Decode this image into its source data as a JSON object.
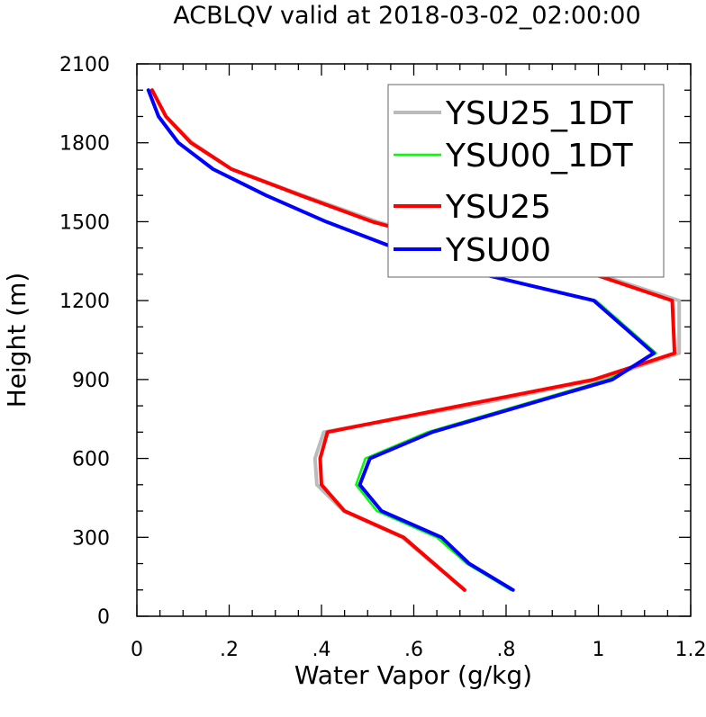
{
  "chart_data": {
    "type": "line",
    "title": "ACBLQV valid at 2018-03-02_02:00:00",
    "xlabel": "Water Vapor (g/kg)",
    "ylabel": "Height (m)",
    "xlim": [
      0,
      1.2
    ],
    "ylim": [
      0,
      2100
    ],
    "xticks": [
      0,
      0.2,
      0.4,
      0.6,
      0.8,
      1.0,
      1.2
    ],
    "xtick_labels": [
      "0",
      ".2",
      ".4",
      ".6",
      ".8",
      "1",
      "1.2"
    ],
    "yticks": [
      0,
      300,
      600,
      900,
      1200,
      1500,
      1800,
      2100
    ],
    "ytick_labels": [
      "0",
      "300",
      "600",
      "900",
      "1200",
      "1500",
      "1800",
      "2100"
    ],
    "grid": false,
    "legend_position": "top-right",
    "series": [
      {
        "name": "YSU25_1DT",
        "color": "#bbbbbb",
        "points": [
          [
            0.71,
            100
          ],
          [
            0.575,
            300
          ],
          [
            0.448,
            400
          ],
          [
            0.39,
            500
          ],
          [
            0.386,
            600
          ],
          [
            0.405,
            700
          ],
          [
            0.72,
            800
          ],
          [
            1.0,
            900
          ],
          [
            1.175,
            1000
          ],
          [
            1.175,
            1200
          ],
          [
            1.0,
            1300
          ],
          [
            0.72,
            1400
          ],
          [
            0.52,
            1500
          ],
          [
            0.36,
            1600
          ],
          [
            0.205,
            1700
          ],
          [
            0.12,
            1800
          ],
          [
            0.063,
            1900
          ],
          [
            0.033,
            2000
          ]
        ]
      },
      {
        "name": "YSU00_1DT",
        "color": "#00ff00",
        "points": [
          [
            0.81,
            100
          ],
          [
            0.715,
            200
          ],
          [
            0.65,
            300
          ],
          [
            0.52,
            400
          ],
          [
            0.475,
            500
          ],
          [
            0.495,
            600
          ],
          [
            0.63,
            700
          ],
          [
            1.02,
            900
          ],
          [
            1.125,
            1000
          ],
          [
            0.995,
            1200
          ],
          [
            0.75,
            1300
          ],
          [
            0.56,
            1400
          ],
          [
            0.41,
            1500
          ],
          [
            0.28,
            1600
          ],
          [
            0.165,
            1700
          ],
          [
            0.09,
            1800
          ],
          [
            0.047,
            1900
          ],
          [
            0.025,
            2000
          ]
        ]
      },
      {
        "name": "YSU25",
        "color": "#ff0000",
        "points": [
          [
            0.71,
            100
          ],
          [
            0.578,
            300
          ],
          [
            0.45,
            400
          ],
          [
            0.4,
            500
          ],
          [
            0.397,
            600
          ],
          [
            0.413,
            700
          ],
          [
            0.7,
            800
          ],
          [
            0.99,
            900
          ],
          [
            1.165,
            1000
          ],
          [
            1.16,
            1200
          ],
          [
            0.99,
            1300
          ],
          [
            0.72,
            1400
          ],
          [
            0.51,
            1500
          ],
          [
            0.355,
            1600
          ],
          [
            0.205,
            1700
          ],
          [
            0.117,
            1800
          ],
          [
            0.063,
            1900
          ],
          [
            0.033,
            2000
          ]
        ]
      },
      {
        "name": "YSU00",
        "color": "#0000ff",
        "points": [
          [
            0.815,
            100
          ],
          [
            0.72,
            200
          ],
          [
            0.66,
            300
          ],
          [
            0.53,
            400
          ],
          [
            0.483,
            500
          ],
          [
            0.505,
            600
          ],
          [
            0.64,
            700
          ],
          [
            1.03,
            900
          ],
          [
            1.12,
            1000
          ],
          [
            0.99,
            1200
          ],
          [
            0.75,
            1300
          ],
          [
            0.56,
            1400
          ],
          [
            0.41,
            1500
          ],
          [
            0.28,
            1600
          ],
          [
            0.165,
            1700
          ],
          [
            0.09,
            1800
          ],
          [
            0.047,
            1900
          ],
          [
            0.025,
            2000
          ]
        ]
      }
    ]
  }
}
